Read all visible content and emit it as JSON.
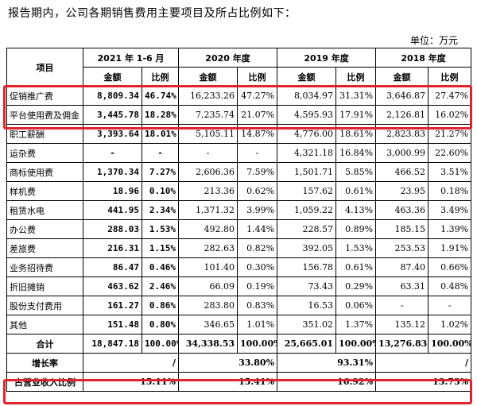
{
  "intro": "报告期内，公司各期销售费用主要项目及所占比例如下：",
  "unit": "单位：万元",
  "header": {
    "item": "项目",
    "periods": [
      "2021 年 1-6 月",
      "2020 年度",
      "2019 年度",
      "2018 年度"
    ],
    "amount": "金额",
    "ratio": "比例"
  },
  "rows": [
    {
      "name": "促销推广费",
      "v": [
        "8,809.34",
        "46.74%",
        "16,233.26",
        "47.27%",
        "8,034.97",
        "31.31%",
        "3,646.87",
        "27.47%"
      ]
    },
    {
      "name": "平台使用费及佣金",
      "v": [
        "3,445.78",
        "18.28%",
        "7,235.74",
        "21.07%",
        "4,595.93",
        "17.91%",
        "2,126.81",
        "16.02%"
      ]
    },
    {
      "name": "职工薪酬",
      "v": [
        "3,393.64",
        "18.01%",
        "5,105.11",
        "14.87%",
        "4,776.00",
        "18.61%",
        "2,823.83",
        "21.27%"
      ]
    },
    {
      "name": "运杂费",
      "v": [
        "-",
        "-",
        "-",
        "-",
        "4,321.18",
        "16.84%",
        "3,000.99",
        "22.60%"
      ]
    },
    {
      "name": "商标使用费",
      "v": [
        "1,370.34",
        "7.27%",
        "2,606.36",
        "7.59%",
        "1,501.71",
        "5.85%",
        "466.52",
        "3.51%"
      ]
    },
    {
      "name": "样机费",
      "v": [
        "18.96",
        "0.10%",
        "213.36",
        "0.62%",
        "157.62",
        "0.61%",
        "23.95",
        "0.18%"
      ]
    },
    {
      "name": "租赁水电",
      "v": [
        "441.95",
        "2.34%",
        "1,371.32",
        "3.99%",
        "1,059.22",
        "4.13%",
        "463.36",
        "3.49%"
      ]
    },
    {
      "name": "办公费",
      "v": [
        "288.03",
        "1.53%",
        "492.80",
        "1.44%",
        "228.57",
        "0.89%",
        "185.15",
        "1.39%"
      ]
    },
    {
      "name": "差旅费",
      "v": [
        "216.31",
        "1.15%",
        "282.63",
        "0.82%",
        "392.05",
        "1.53%",
        "253.53",
        "1.91%"
      ]
    },
    {
      "name": "业务招待费",
      "v": [
        "86.47",
        "0.46%",
        "101.40",
        "0.30%",
        "156.78",
        "0.61%",
        "87.40",
        "0.66%"
      ]
    },
    {
      "name": "折旧摊销",
      "v": [
        "463.62",
        "2.46%",
        "66.09",
        "0.19%",
        "73.43",
        "0.29%",
        "63.31",
        "0.48%"
      ]
    },
    {
      "name": "股份支付费用",
      "v": [
        "161.27",
        "0.86%",
        "283.80",
        "0.83%",
        "16.53",
        "0.06%",
        "-",
        "-"
      ]
    },
    {
      "name": "其他",
      "v": [
        "151.48",
        "0.80%",
        "346.65",
        "1.01%",
        "351.02",
        "1.37%",
        "135.12",
        "1.02%"
      ]
    }
  ],
  "total": {
    "name": "合计",
    "v": [
      "18,847.18",
      "100.00%",
      "34,338.53",
      "100.00%",
      "25,665.01",
      "100.00%",
      "13,276.83",
      "100.00%"
    ]
  },
  "growth": {
    "name": "增长率",
    "v": [
      "/",
      "33.80%",
      "93.31%",
      "/"
    ]
  },
  "revenue_ratio": {
    "name": "占营业收入比例",
    "v": [
      "15.11%",
      "15.41%",
      "16.92%",
      "13.73%"
    ]
  },
  "highlight_color": "#e0242b"
}
